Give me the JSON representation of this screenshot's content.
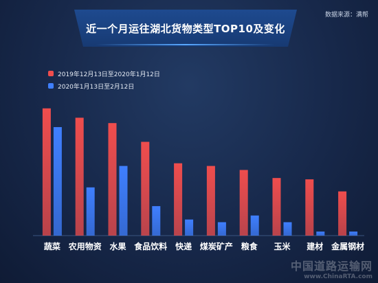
{
  "source_text": "数据来源：满帮",
  "watermark": {
    "cn": "中国道路运输网",
    "en": "www.ChinaRTA.com"
  },
  "colors": {
    "series1": "#ef4d4d",
    "series2": "#3f7fff"
  },
  "chart_data": {
    "type": "bar",
    "title": "近一个月运往湖北货物类型TOP10及变化",
    "categories": [
      "蔬菜",
      "农用物资",
      "水果",
      "食品饮料",
      "快递",
      "煤炭矿产",
      "粮食",
      "玉米",
      "建材",
      "金属钢材"
    ],
    "series": [
      {
        "name": "2019年12月13日至2020年1月12日",
        "values": [
          95,
          88,
          84,
          70,
          54,
          52,
          49,
          43,
          42,
          33
        ]
      },
      {
        "name": "2020年1月13日至2月12日",
        "values": [
          81,
          36,
          52,
          22,
          12,
          10,
          15,
          10,
          3,
          3
        ]
      }
    ],
    "ylim": [
      0,
      100
    ],
    "xlabel": "",
    "ylabel": "",
    "grid": false,
    "legend_position": "top-left"
  }
}
